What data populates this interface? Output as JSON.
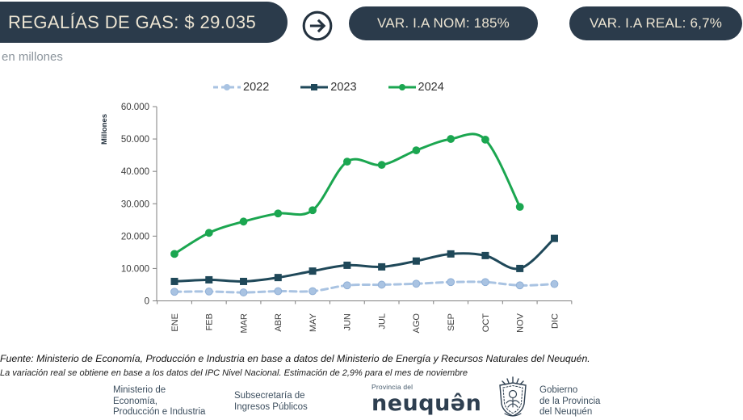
{
  "header": {
    "title": "REGALÍAS DE GAS: $ 29.035",
    "var_nom": "VAR. I.A NOM: 185%",
    "var_real": "VAR. I.A REAL: 6,7%"
  },
  "subtitle": "en millones",
  "chart_data": {
    "type": "line",
    "title": "",
    "xlabel": "",
    "ylabel": "Millones",
    "ylim": [
      0,
      60000
    ],
    "ytick_step": 10000,
    "ytick_labels": [
      "0",
      "10.000",
      "20.000",
      "30.000",
      "40.000",
      "50.000",
      "60.000"
    ],
    "grid": false,
    "legend_position": "top",
    "smoothed_lines": true,
    "categories": [
      "ENE",
      "FEB",
      "MAR",
      "ABR",
      "MAY",
      "JUN",
      "JUL",
      "AGO",
      "SEP",
      "OCT",
      "NOV",
      "DIC"
    ],
    "series": [
      {
        "name": "2022",
        "color": "#a9c3e2",
        "marker": "circle",
        "marker_edge": "#8fafd6",
        "line_style": "dashed",
        "values": [
          2800,
          2900,
          2600,
          3000,
          3000,
          4800,
          5000,
          5300,
          5800,
          5800,
          4800,
          5200
        ]
      },
      {
        "name": "2023",
        "color": "#1f4859",
        "marker": "square",
        "marker_edge": "#1f4859",
        "line_style": "solid",
        "values": [
          6000,
          6500,
          6000,
          7200,
          9200,
          11000,
          10500,
          12300,
          14500,
          14000,
          10000,
          19300
        ]
      },
      {
        "name": "2024",
        "color": "#1ba650",
        "marker": "circle",
        "marker_edge": "#1ba650",
        "line_style": "solid",
        "values": [
          14500,
          21000,
          24500,
          27000,
          28000,
          43000,
          42000,
          46500,
          50000,
          49800,
          29035
        ]
      }
    ]
  },
  "footer": {
    "source": "Fuente: Ministerio de Economía, Producción e Industria en base a datos del Ministerio de Energía y  Recursos Naturales del Neuquén.",
    "note": "La variación real se obtiene en base a los datos del IPC Nivel Nacional. Estimación de 2,9% para el mes de noviembre"
  },
  "logos": {
    "ministry_lines": [
      "Ministerio de",
      "Economía,",
      "Producción e Industria"
    ],
    "subsecretary_lines": [
      "Subsecretaría de",
      "Ingresos Públicos"
    ],
    "province_small": "Provincia del",
    "province_wordmark": "neuquə̂n",
    "government_lines": [
      "Gobierno",
      "de la Provincia",
      "del Neuquén"
    ]
  },
  "colors": {
    "pill_bg": "#2b3b4b",
    "pill_text": "#ece4d2",
    "axis": "#7f7f7f",
    "tick_text": "#3c3c3c",
    "green_2024": "#1ba650",
    "navy_2023": "#1f4859",
    "blue_2022": "#a9c3e2"
  }
}
